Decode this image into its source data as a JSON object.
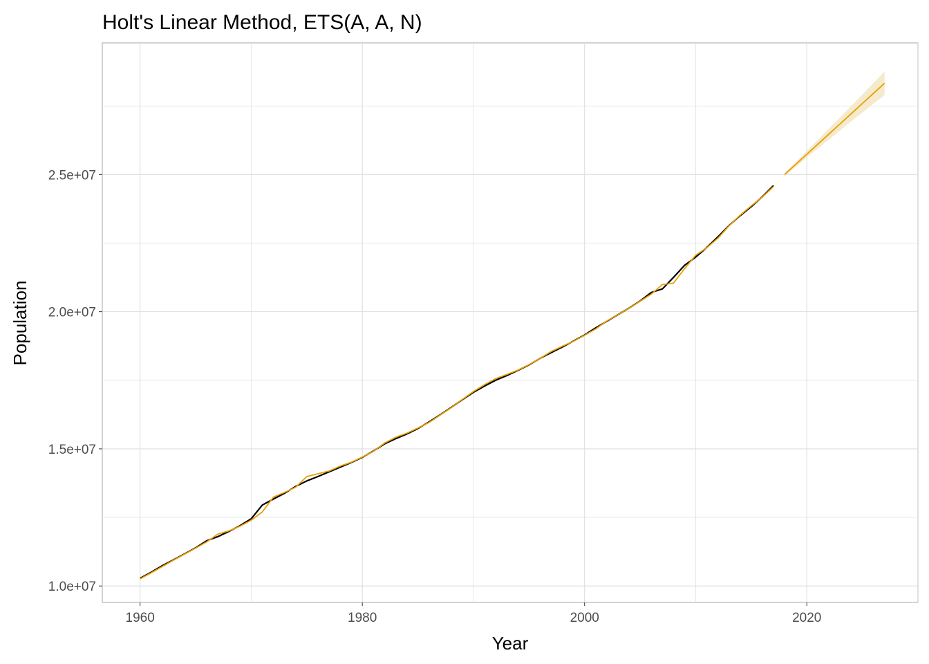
{
  "chart_data": {
    "type": "line",
    "title": "Holt's Linear Method, ETS(A, A, N)",
    "xlabel": "Year",
    "ylabel": "Population",
    "xlim": [
      1956.6,
      2030
    ],
    "ylim": [
      9400000,
      29800000
    ],
    "x_ticks": [
      1960,
      1980,
      2000,
      2020
    ],
    "x_tick_labels": [
      "1960",
      "1980",
      "2000",
      "2020"
    ],
    "y_ticks": [
      10000000,
      15000000,
      20000000,
      25000000
    ],
    "y_tick_labels": [
      "1.0e+07",
      "1.5e+07",
      "2.0e+07",
      "2.5e+07"
    ],
    "grid": true,
    "colors": {
      "actual": "#000000",
      "fitted": "#e69f00",
      "interval": "#f5e6c4",
      "grid": "#dedede",
      "panel_border": "#b3b3b3"
    },
    "series": [
      {
        "role": "actual",
        "x": [
          1960,
          1961,
          1962,
          1963,
          1964,
          1965,
          1966,
          1967,
          1968,
          1969,
          1970,
          1971,
          1972,
          1973,
          1974,
          1975,
          1976,
          1977,
          1978,
          1979,
          1980,
          1981,
          1982,
          1983,
          1984,
          1985,
          1986,
          1987,
          1988,
          1989,
          1990,
          1991,
          1992,
          1993,
          1994,
          1995,
          1996,
          1997,
          1998,
          1999,
          2000,
          2001,
          2002,
          2003,
          2004,
          2005,
          2006,
          2007,
          2008,
          2009,
          2010,
          2011,
          2012,
          2013,
          2014,
          2015,
          2016,
          2017
        ],
        "values": [
          10280000,
          10500000,
          10740000,
          10950000,
          11170000,
          11390000,
          11650000,
          11800000,
          11990000,
          12200000,
          12450000,
          12950000,
          13170000,
          13380000,
          13630000,
          13830000,
          13990000,
          14160000,
          14330000,
          14500000,
          14690000,
          14920000,
          15180000,
          15370000,
          15540000,
          15740000,
          15980000,
          16240000,
          16510000,
          16790000,
          17060000,
          17290000,
          17500000,
          17670000,
          17860000,
          18060000,
          18300000,
          18510000,
          18710000,
          18930000,
          19150000,
          19410000,
          19650000,
          19890000,
          20130000,
          20390000,
          20700000,
          20830000,
          21250000,
          21690000,
          21990000,
          22340000,
          22730000,
          23140000,
          23500000,
          23830000,
          24190000,
          24600000
        ]
      },
      {
        "role": "fitted",
        "x": [
          1960,
          1961,
          1962,
          1963,
          1964,
          1965,
          1966,
          1967,
          1968,
          1969,
          1970,
          1971,
          1972,
          1973,
          1974,
          1975,
          1976,
          1977,
          1978,
          1979,
          1980,
          1981,
          1982,
          1983,
          1984,
          1985,
          1986,
          1987,
          1988,
          1989,
          1990,
          1991,
          1992,
          1993,
          1994,
          1995,
          1996,
          1997,
          1998,
          1999,
          2000,
          2001,
          2002,
          2003,
          2004,
          2005,
          2006,
          2007,
          2008,
          2009,
          2010,
          2011,
          2012,
          2013,
          2014,
          2015,
          2016,
          2017
        ],
        "values": [
          10260000,
          10480000,
          10710000,
          10940000,
          11160000,
          11380000,
          11610000,
          11890000,
          12010000,
          12180000,
          12400000,
          12700000,
          13240000,
          13410000,
          13600000,
          13990000,
          14090000,
          14190000,
          14370000,
          14510000,
          14700000,
          14910000,
          15210000,
          15420000,
          15570000,
          15760000,
          15960000,
          16230000,
          16500000,
          16800000,
          17090000,
          17340000,
          17560000,
          17710000,
          17870000,
          18070000,
          18300000,
          18550000,
          18740000,
          18920000,
          19140000,
          19370000,
          19660000,
          19890000,
          20130000,
          20380000,
          20640000,
          20990000,
          21040000,
          21570000,
          22060000,
          22330000,
          22680000,
          23130000,
          23520000,
          23860000,
          24180000,
          24560000
        ]
      },
      {
        "role": "forecast",
        "x": [
          2018,
          2019,
          2020,
          2021,
          2022,
          2023,
          2024,
          2025,
          2026,
          2027
        ],
        "values": [
          25000000,
          25370000,
          25740000,
          26110000,
          26480000,
          26850000,
          27220000,
          27590000,
          27960000,
          28330000
        ],
        "lower": [
          24940000,
          25280000,
          25620000,
          25950000,
          26280000,
          26610000,
          26940000,
          27260000,
          27580000,
          27900000
        ],
        "upper": [
          25060000,
          25460000,
          25860000,
          26270000,
          26680000,
          27090000,
          27500000,
          27920000,
          28340000,
          28760000
        ]
      }
    ]
  }
}
